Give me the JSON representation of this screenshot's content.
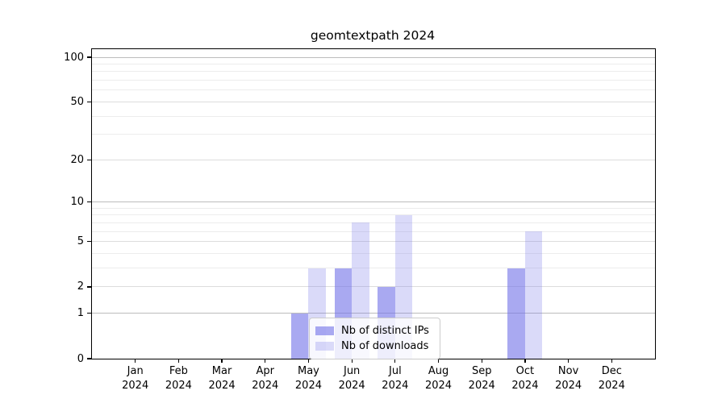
{
  "figure": {
    "title": "geomtextpath 2024"
  },
  "chart_data": {
    "type": "bar",
    "title": "geomtextpath 2024",
    "x_tick_month": [
      "Jan",
      "Feb",
      "Mar",
      "Apr",
      "May",
      "Jun",
      "Jul",
      "Aug",
      "Sep",
      "Oct",
      "Nov",
      "Dec"
    ],
    "x_tick_year": "2024",
    "categories": [
      "Jan 2024",
      "Feb 2024",
      "Mar 2024",
      "Apr 2024",
      "May 2024",
      "Jun 2024",
      "Jul 2024",
      "Aug 2024",
      "Sep 2024",
      "Oct 2024",
      "Nov 2024",
      "Dec 2024"
    ],
    "series": [
      {
        "name": "Nb of distinct IPs",
        "color": "rgba(116,116,232,0.62)",
        "values": [
          0,
          0,
          0,
          0,
          1,
          3,
          2,
          0,
          0,
          3,
          0,
          0
        ]
      },
      {
        "name": "Nb of downloads",
        "color": "rgba(123,123,234,0.28)",
        "values": [
          0,
          0,
          0,
          0,
          3,
          7,
          8,
          0,
          0,
          6,
          0,
          0
        ]
      }
    ],
    "y_scale": "log1p",
    "ylim": [
      0,
      113.3
    ],
    "y_axis_max": 113.3,
    "y_ticks": [
      0,
      1,
      2,
      5,
      10,
      20,
      50,
      100
    ],
    "y_tick_labels": [
      "0",
      "1",
      "2",
      "5",
      "10",
      "20",
      "50",
      "100"
    ],
    "grid": {
      "major": [
        1,
        10,
        100
      ],
      "mid": [
        2,
        5,
        20,
        50
      ],
      "minor": [
        3,
        4,
        6,
        7,
        8,
        9,
        30,
        40,
        60,
        70,
        80,
        90
      ]
    },
    "legend": {
      "position": "lower-center-inside",
      "entries": [
        "Nb of distinct IPs",
        "Nb of downloads"
      ]
    },
    "layout_hints": {
      "grid_horizontal_only": true,
      "frame": "full-box"
    },
    "colors": {
      "background": "#ffffff",
      "frame": "#000000",
      "text": "#000000",
      "grid_major": "#bcbcbc",
      "grid_mid": "#dddddd",
      "grid_minor": "#ececec",
      "bar_distinct_ips": "rgba(116,116,232,0.62)",
      "bar_downloads": "rgba(123,123,234,0.28)"
    }
  }
}
